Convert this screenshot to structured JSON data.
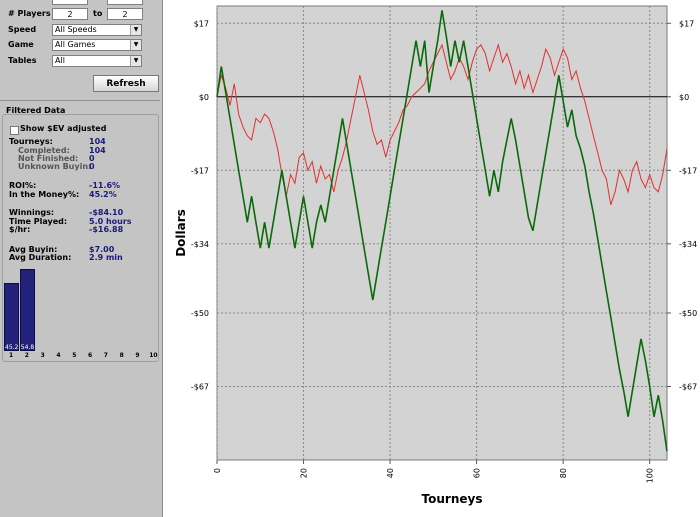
{
  "filters": {
    "players_label": "# Players",
    "players_from": "2",
    "to_label": "to",
    "players_to": "2",
    "speed_label": "Speed",
    "speed_value": "All Speeds",
    "game_label": "Game",
    "game_value": "All Games",
    "tables_label": "Tables",
    "tables_value": "All",
    "refresh_label": "Refresh"
  },
  "filtered": {
    "title": "Filtered Data",
    "ev_label": "Show $EV adjusted",
    "stats": [
      {
        "label": "Tourneys:",
        "value": "104",
        "sub": false
      },
      {
        "label": "Completed:",
        "value": "104",
        "sub": true
      },
      {
        "label": "Not Finished:",
        "value": "0",
        "sub": true
      },
      {
        "label": "Unknown Buyin:",
        "value": "0",
        "sub": true
      },
      {
        "label": "ROI%:",
        "value": "-11.6%",
        "sub": false
      },
      {
        "label": "In the Money%:",
        "value": "45.2%",
        "sub": false
      },
      {
        "label": "Winnings:",
        "value": "-$84.10",
        "sub": false
      },
      {
        "label": "Time Played:",
        "value": "5.0 hours",
        "sub": false
      },
      {
        "label": "$/hr:",
        "value": "-$16.88",
        "sub": false
      },
      {
        "label": "Avg Buyin:",
        "value": "$7.00",
        "sub": false
      },
      {
        "label": "Avg Duration:",
        "value": "2.9 min",
        "sub": false
      }
    ],
    "finish_bars": {
      "positions": [
        "1",
        "2",
        "3",
        "4",
        "5",
        "6",
        "7",
        "8",
        "9",
        "10"
      ],
      "values": [
        45.2,
        54.8,
        0,
        0,
        0,
        0,
        0,
        0,
        0,
        0
      ],
      "labels": [
        "45.2",
        "54.8"
      ]
    }
  },
  "chart_data": {
    "type": "line",
    "xlabel": "Tourneys",
    "ylabel": "Dollars",
    "xlim": [
      0,
      104
    ],
    "ylim": [
      -84,
      21
    ],
    "xticks": [
      0,
      20,
      40,
      60,
      80,
      100
    ],
    "yticks": [
      17,
      0,
      -17,
      -34,
      -50,
      -67
    ],
    "ytick_labels": [
      "$17",
      "$0",
      "-$17",
      "-$34",
      "-$50",
      "-$67"
    ],
    "grid": true,
    "colors": {
      "green": "#0a6a0a",
      "red": "#e03030",
      "background": "#d3d3d3"
    },
    "series": [
      {
        "color": "green",
        "x": [
          0,
          1,
          2,
          3,
          4,
          5,
          6,
          7,
          8,
          9,
          10,
          11,
          12,
          13,
          14,
          15,
          16,
          17,
          18,
          19,
          20,
          21,
          22,
          23,
          24,
          25,
          26,
          27,
          28,
          29,
          30,
          31,
          32,
          33,
          34,
          35,
          36,
          37,
          38,
          39,
          40,
          41,
          42,
          43,
          44,
          45,
          46,
          47,
          48,
          49,
          50,
          51,
          52,
          53,
          54,
          55,
          56,
          57,
          58,
          59,
          60,
          61,
          62,
          63,
          64,
          65,
          66,
          67,
          68,
          69,
          70,
          71,
          72,
          73,
          74,
          75,
          76,
          77,
          78,
          79,
          80,
          81,
          82,
          83,
          84,
          85,
          86,
          87,
          88,
          89,
          90,
          91,
          92,
          93,
          94,
          95,
          96,
          97,
          98,
          99,
          100,
          101,
          102,
          103,
          104
        ],
        "values": [
          0,
          7,
          1,
          -5,
          -11,
          -17,
          -23,
          -29,
          -23,
          -29,
          -35,
          -29,
          -35,
          -29,
          -23,
          -17,
          -23,
          -29,
          -35,
          -29,
          -23,
          -29,
          -35,
          -29,
          -25,
          -29,
          -23,
          -17,
          -11,
          -5,
          -11,
          -17,
          -23,
          -29,
          -35,
          -41,
          -47,
          -41,
          -35,
          -29,
          -23,
          -17,
          -11,
          -5,
          1,
          7,
          13,
          7,
          13,
          1,
          7,
          13,
          20,
          14,
          7,
          13,
          8,
          13,
          7,
          1,
          -5,
          -11,
          -17,
          -23,
          -17,
          -22,
          -15,
          -10,
          -5,
          -10,
          -16,
          -22,
          -28,
          -31,
          -25,
          -19,
          -13,
          -7,
          -1,
          5,
          -1,
          -7,
          -3,
          -9,
          -12,
          -16,
          -22,
          -27,
          -33,
          -39,
          -45,
          -51,
          -57,
          -63,
          -68,
          -74,
          -68,
          -62,
          -56,
          -61,
          -67,
          -74,
          -69,
          -75,
          -82
        ]
      },
      {
        "color": "red",
        "x": [
          0,
          1,
          2,
          3,
          4,
          5,
          6,
          7,
          8,
          9,
          10,
          11,
          12,
          13,
          14,
          15,
          16,
          17,
          18,
          19,
          20,
          21,
          22,
          23,
          24,
          25,
          26,
          27,
          28,
          29,
          30,
          31,
          32,
          33,
          34,
          35,
          36,
          37,
          38,
          39,
          40,
          41,
          42,
          43,
          44,
          45,
          46,
          47,
          48,
          49,
          50,
          51,
          52,
          53,
          54,
          55,
          56,
          57,
          58,
          59,
          60,
          61,
          62,
          63,
          64,
          65,
          66,
          67,
          68,
          69,
          70,
          71,
          72,
          73,
          74,
          75,
          76,
          77,
          78,
          79,
          80,
          81,
          82,
          83,
          84,
          85,
          86,
          87,
          88,
          89,
          90,
          91,
          92,
          93,
          94,
          95,
          96,
          97,
          98,
          99,
          100,
          101,
          102,
          103,
          104
        ],
        "values": [
          0,
          5,
          2,
          -2,
          3,
          -4,
          -7,
          -9,
          -10,
          -5,
          -6,
          -4,
          -5,
          -8,
          -12,
          -18,
          -23,
          -18,
          -20,
          -14,
          -13,
          -17,
          -15,
          -20,
          -16,
          -19,
          -18,
          -22,
          -17,
          -14,
          -10,
          -5,
          0,
          5,
          1,
          -3,
          -8,
          -11,
          -10,
          -14,
          -10,
          -8,
          -6,
          -3,
          -2,
          0,
          1,
          2,
          3,
          6,
          8,
          10,
          12,
          8,
          4,
          6,
          9,
          7,
          4,
          8,
          11,
          12,
          10,
          6,
          9,
          12,
          8,
          10,
          7,
          3,
          6,
          2,
          5,
          1,
          4,
          7,
          11,
          9,
          5,
          8,
          11,
          9,
          4,
          6,
          2,
          -1,
          -5,
          -9,
          -13,
          -17,
          -19,
          -25,
          -22,
          -17,
          -19,
          -22,
          -17,
          -15,
          -19,
          -21,
          -18,
          -21,
          -22,
          -18,
          -12
        ]
      }
    ]
  }
}
